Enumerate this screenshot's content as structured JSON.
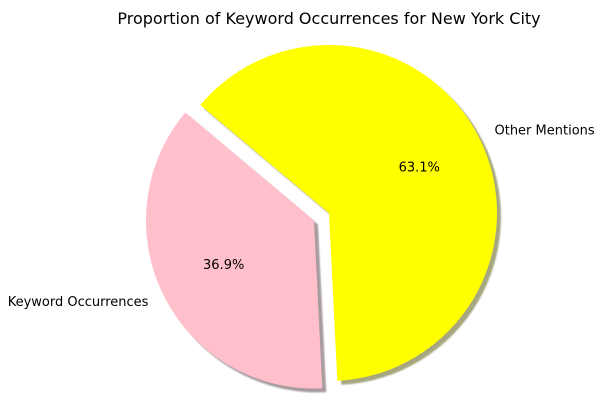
{
  "chart_data": {
    "type": "pie",
    "title": "Proportion of Keyword Occurrences for New York City",
    "slices": [
      {
        "label": "Keyword Occurrences",
        "value": 36.9,
        "pct_label": "36.9%",
        "color": "#ffc0cb",
        "exploded": true
      },
      {
        "label": "Other Mentions",
        "value": 63.1,
        "pct_label": "63.1%",
        "color": "#ffff00",
        "exploded": false
      }
    ],
    "shadow": true,
    "legend": "none"
  }
}
